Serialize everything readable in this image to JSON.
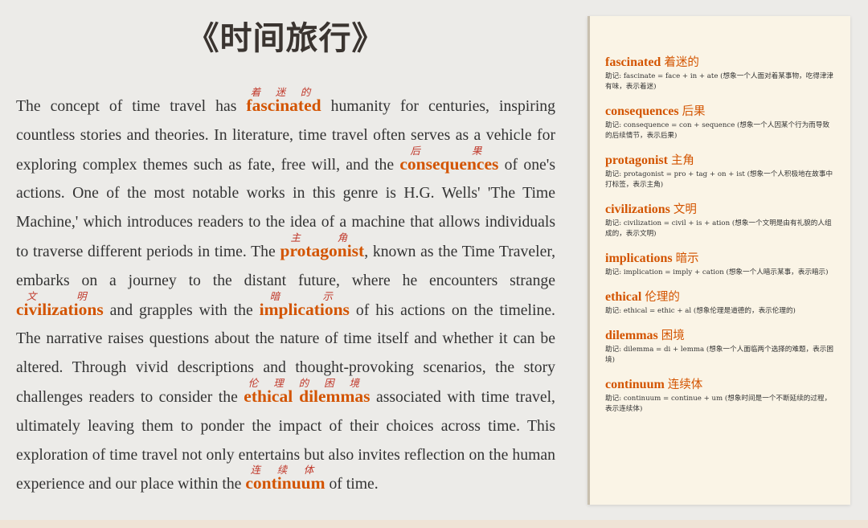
{
  "title": "《时间旅行》",
  "article": {
    "p1": "The concept of time travel has ",
    "p2": " humanity for centuries, inspiring countless stories and theories. In literature, time travel often serves as a vehicle for exploring complex themes such as fate, free will, and the ",
    "p3": " of one's actions. One of the most notable works in this genre is H.G. Wells' 'The Time Machine,' which introduces readers to the idea of a machine that allows individuals to traverse different periods in time. The ",
    "p4": ", known as the Time Traveler, embarks on a journey to the distant future, where he encounters strange ",
    "p5": " and grapples with the ",
    "p6": " of his actions on the timeline. The narrative raises questions about the nature of time itself and whether it can be altered. Through vivid descriptions and thought-provoking scenarios, the story challenges readers to consider the ",
    "p7": " associated with time travel, ultimately leaving them to ponder the impact of their choices across time. This exploration of time travel not only entertains but also invites reflection on the human experience and our place within the ",
    "p8": " of time."
  },
  "vocab_inline": {
    "fascinated": {
      "word": "fascinated",
      "ruby": "着迷的"
    },
    "consequences": {
      "word": "consequences",
      "ruby": "后果"
    },
    "protagonist": {
      "word": "protagonist",
      "ruby": "主角"
    },
    "civilizations": {
      "word": "civilizations",
      "ruby": "文明"
    },
    "implications": {
      "word": "implications",
      "ruby": "暗示"
    },
    "ethical_dilemmas": {
      "word": "ethical dilemmas",
      "ruby": "伦理的困境"
    },
    "continuum": {
      "word": "continuum",
      "ruby": "连续体"
    }
  },
  "glossary": [
    {
      "word": "fascinated",
      "cn": "着迷的",
      "note": "助记: fascinate = face + in + ate (想象一个人面对着某事物，吃得津津有味，表示着迷)"
    },
    {
      "word": "consequences",
      "cn": "后果",
      "note": "助记: consequence = con + sequence (想象一个人因某个行为而导致的后续情节，表示后果)"
    },
    {
      "word": "protagonist",
      "cn": "主角",
      "note": "助记: protagonist = pro + tag + on + ist (想象一个人积极地在故事中打标签，表示主角)"
    },
    {
      "word": "civilizations",
      "cn": "文明",
      "note": "助记: civilization = civil + is + ation (想象一个文明是由有礼貌的人组成的，表示文明)"
    },
    {
      "word": "implications",
      "cn": "暗示",
      "note": "助记: implication = imply + cation (想象一个人暗示某事，表示暗示)"
    },
    {
      "word": "ethical",
      "cn": "伦理的",
      "note": "助记: ethical = ethic + al (想象伦理是道德的，表示伦理的)"
    },
    {
      "word": "dilemmas",
      "cn": "困境",
      "note": "助记: dilemma = di + lemma (想象一个人面临两个选择的难题，表示困境)"
    },
    {
      "word": "continuum",
      "cn": "连续体",
      "note": "助记: continuum = continue + um (想象时间是一个不断延续的过程，表示连续体)"
    }
  ]
}
